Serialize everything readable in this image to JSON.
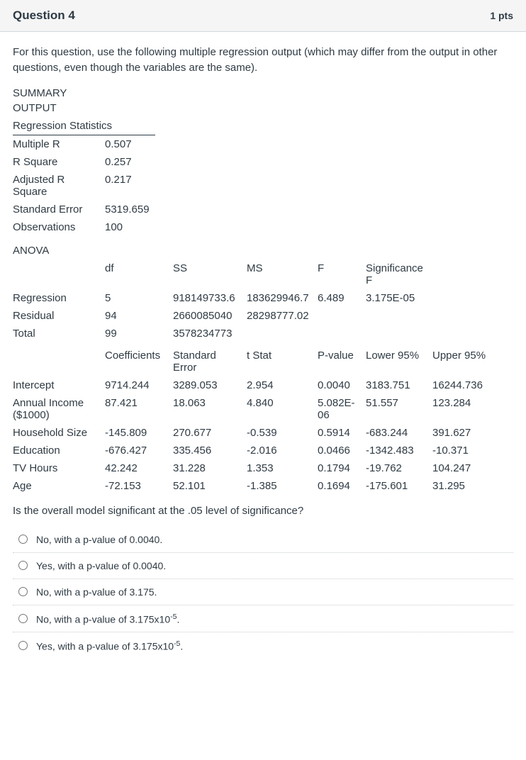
{
  "header": {
    "title": "Question 4",
    "points": "1 pts"
  },
  "prompt": "For this question, use the following multiple regression output (which may differ from the output in other questions, even though the variables are the same).",
  "summary": {
    "label1": "SUMMARY",
    "label2": "OUTPUT",
    "stats_header": "Regression Statistics",
    "rows": [
      {
        "label": "Multiple R",
        "value": "0.507"
      },
      {
        "label": "R Square",
        "value": "0.257"
      },
      {
        "label": "Adjusted R Square",
        "value": "0.217"
      },
      {
        "label": "Standard Error",
        "value": "5319.659"
      },
      {
        "label": "Observations",
        "value": "100"
      }
    ]
  },
  "anova": {
    "title": "ANOVA",
    "headers": [
      "",
      "df",
      "SS",
      "MS",
      "F",
      "Significance F"
    ],
    "rows": [
      {
        "c0": "Regression",
        "c1": "5",
        "c2": "918149733.6",
        "c3": "183629946.7",
        "c4": "6.489",
        "c5": "3.175E-05"
      },
      {
        "c0": "Residual",
        "c1": "94",
        "c2": "2660085040",
        "c3": "28298777.02",
        "c4": "",
        "c5": ""
      },
      {
        "c0": "Total",
        "c1": "99",
        "c2": "3578234773",
        "c3": "",
        "c4": "",
        "c5": ""
      }
    ]
  },
  "coef": {
    "headers": [
      "",
      "Coefficients",
      "Standard Error",
      "t Stat",
      "P-value",
      "Lower 95%",
      "Upper 95%"
    ],
    "rows": [
      {
        "c0": "Intercept",
        "c1": "9714.244",
        "c2": "3289.053",
        "c3": "2.954",
        "c4": "0.0040",
        "c5": "3183.751",
        "c6": "16244.736"
      },
      {
        "c0": "Annual Income ($1000)",
        "c1": "87.421",
        "c2": "18.063",
        "c3": "4.840",
        "c4": "5.082E-06",
        "c5": "51.557",
        "c6": "123.284"
      },
      {
        "c0": "Household Size",
        "c1": "-145.809",
        "c2": "270.677",
        "c3": "-0.539",
        "c4": "0.5914",
        "c5": "-683.244",
        "c6": "391.627"
      },
      {
        "c0": "Education",
        "c1": "-676.427",
        "c2": "335.456",
        "c3": "-2.016",
        "c4": "0.0466",
        "c5": "-1342.483",
        "c6": "-10.371"
      },
      {
        "c0": "TV Hours",
        "c1": "42.242",
        "c2": "31.228",
        "c3": "1.353",
        "c4": "0.1794",
        "c5": "-19.762",
        "c6": "104.247"
      },
      {
        "c0": "Age",
        "c1": "-72.153",
        "c2": "52.101",
        "c3": "-1.385",
        "c4": "0.1694",
        "c5": "-175.601",
        "c6": "31.295"
      }
    ]
  },
  "ask": "Is the overall model significant at the .05 level of significance?",
  "options": [
    {
      "text": "No, with a p-value of 0.0040."
    },
    {
      "text": "Yes, with a p-value of 0.0040."
    },
    {
      "text": "No, with a p-value of 3.175."
    },
    {
      "html": "No, with a p-value of 3.175x10<sup>-5</sup>."
    },
    {
      "html": "Yes, with a p-value of 3.175x10<sup>-5</sup>."
    }
  ]
}
